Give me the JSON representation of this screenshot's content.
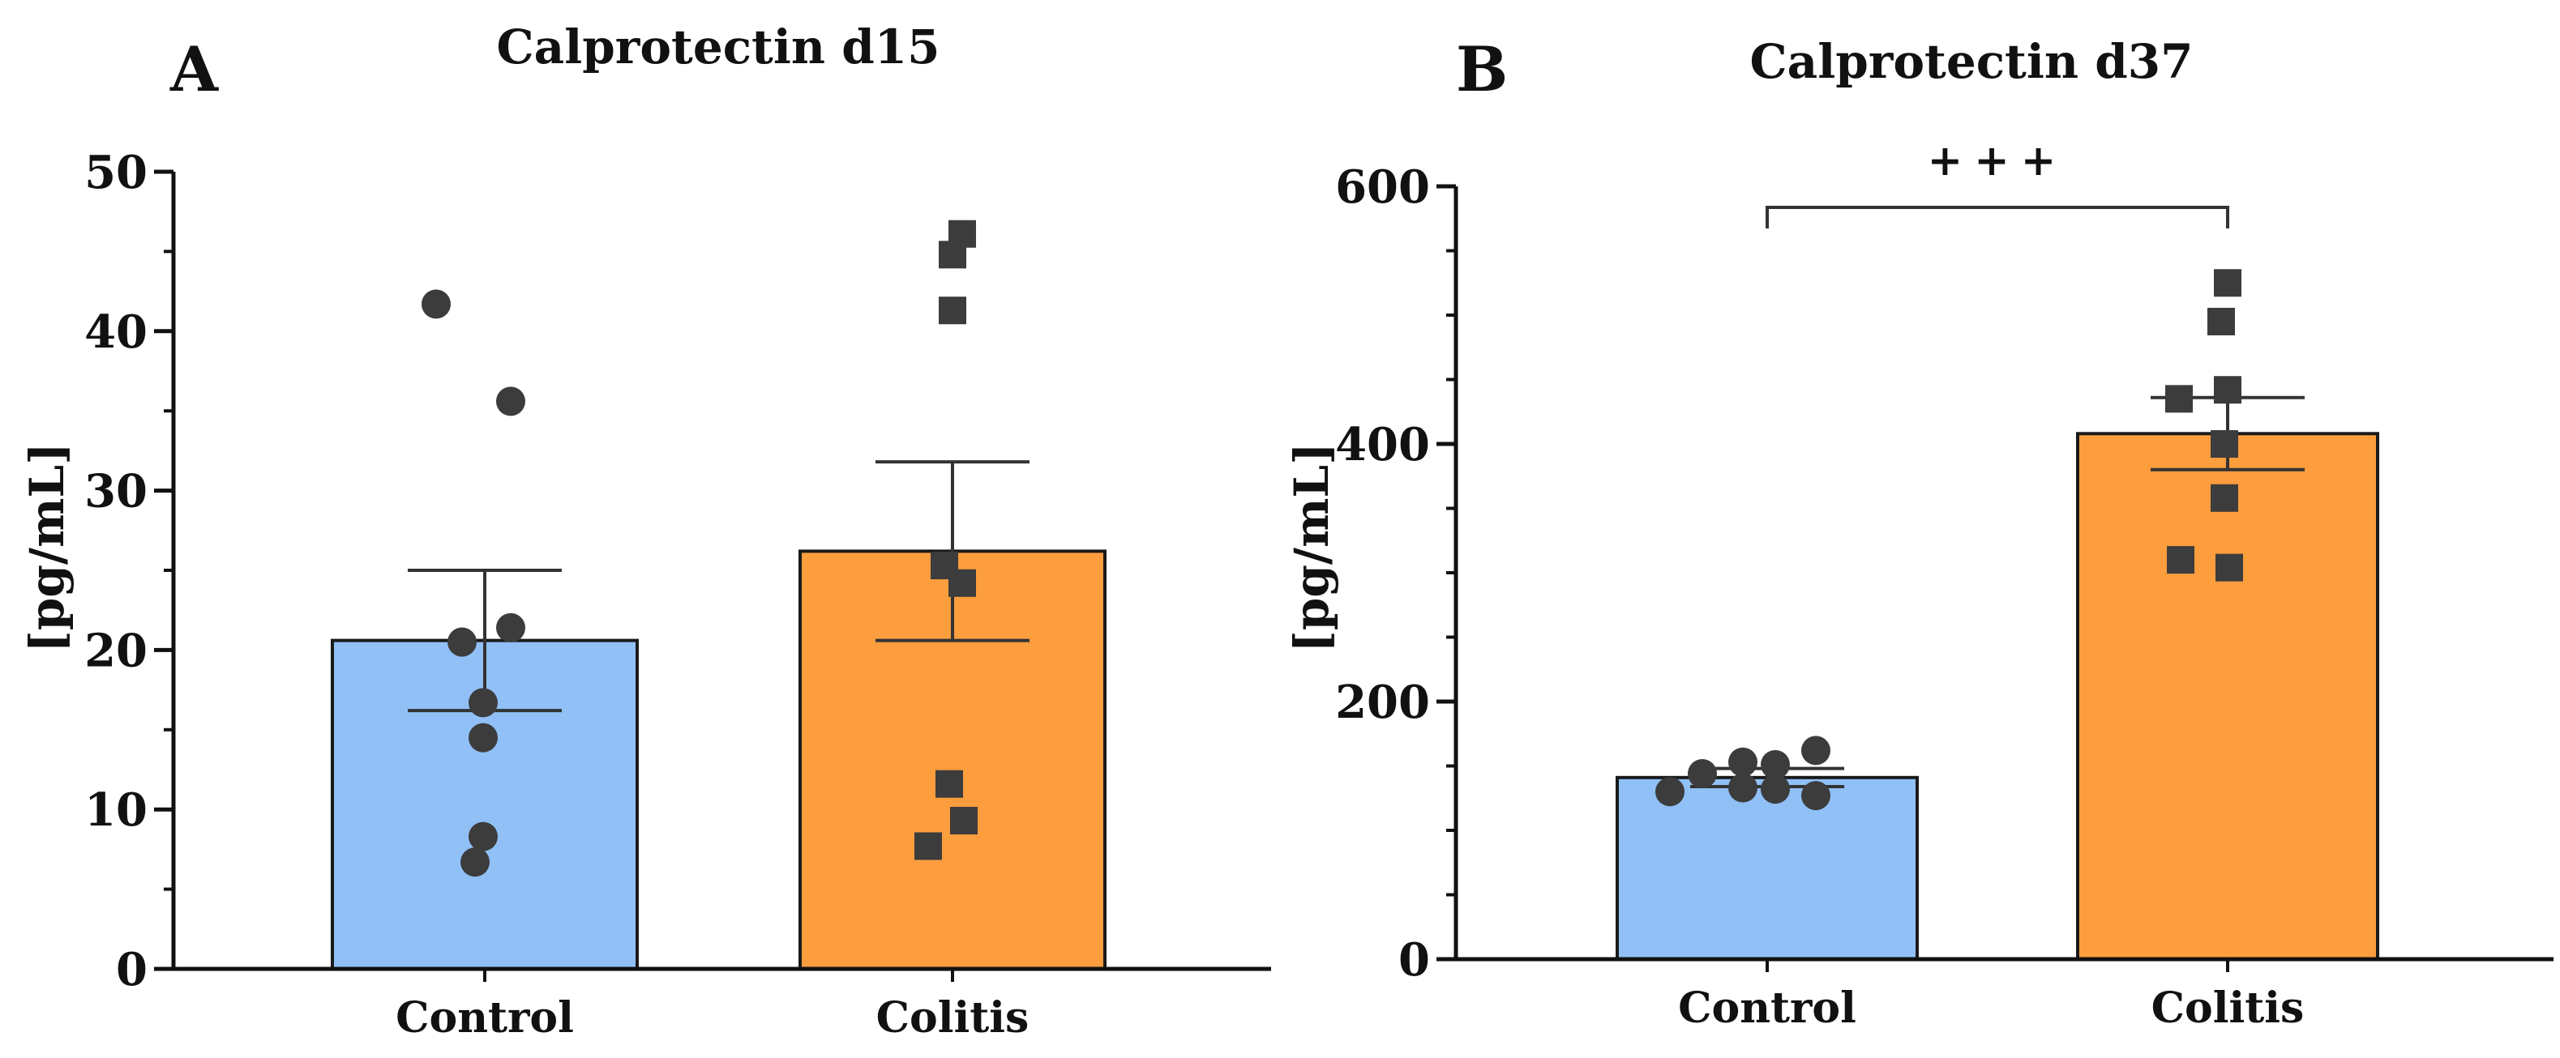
{
  "chart_data": [
    {
      "type": "bar",
      "panel_label": "A",
      "title": "Calprotectin d15",
      "ylabel": "[pg/mL]",
      "xlabel": "",
      "ylim": [
        0,
        50
      ],
      "yticks": [
        "0",
        "10",
        "20",
        "30",
        "40",
        "50"
      ],
      "ytick_values": [
        0,
        10,
        20,
        30,
        40,
        50
      ],
      "categories": [
        "Control",
        "Colitis"
      ],
      "values": [
        20.6,
        26.2
      ],
      "sem": [
        4.4,
        5.6
      ],
      "bar_colors": [
        "#90c0f6",
        "#fc9d3e"
      ],
      "points": [
        {
          "marker": "circle",
          "y": [
            41.7,
            35.6,
            21.4,
            20.5,
            16.7,
            14.5,
            8.3,
            6.7
          ]
        },
        {
          "marker": "square",
          "y": [
            46.1,
            44.8,
            41.3,
            25.3,
            24.2,
            11.6,
            9.3,
            7.7
          ]
        }
      ],
      "significance": null
    },
    {
      "type": "bar",
      "panel_label": "B",
      "title": "Calprotectin d37",
      "ylabel": "[pg/mL]",
      "xlabel": "",
      "ylim": [
        0,
        600
      ],
      "yticks": [
        "0",
        "200",
        "400",
        "600"
      ],
      "ytick_values": [
        0,
        200,
        400,
        600
      ],
      "categories": [
        "Control",
        "Colitis"
      ],
      "values": [
        141,
        408
      ],
      "sem": [
        7,
        28
      ],
      "bar_colors": [
        "#90c0f6",
        "#fc9d3e"
      ],
      "points": [
        {
          "marker": "circle",
          "y": [
            130,
            144,
            153,
            133,
            151,
            132,
            127,
            162
          ]
        },
        {
          "marker": "square",
          "y": [
            525,
            495,
            435,
            442,
            400,
            358,
            310,
            304
          ]
        }
      ],
      "significance": "+++"
    }
  ]
}
